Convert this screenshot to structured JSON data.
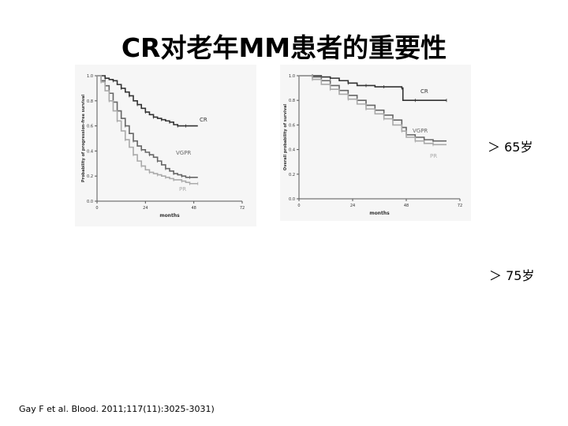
{
  "slide": {
    "title": "CR对老年MM患者的重要性",
    "age_labels": [
      "＞ 65岁",
      "＞ 75岁"
    ],
    "citation": "Gay F et al. Blood. 2011;117(11):3025-3031)"
  },
  "chart_data": [
    {
      "type": "line",
      "subtype": "kaplan-meier",
      "ylabel": "Probability of progression-free survival",
      "xlabel": "months",
      "xlim": [
        0,
        72
      ],
      "ylim": [
        0,
        1
      ],
      "xticks": [
        "0",
        "24",
        "48",
        "72"
      ],
      "yticks": [
        "0.0",
        "0.2",
        "0.4",
        "0.6",
        "0.8",
        "1.0"
      ],
      "colors": {
        "CR": "#333333",
        "VGPR": "#666666",
        "PR": "#aaaaaa"
      },
      "series": [
        {
          "name": "CR",
          "x": [
            0,
            4,
            6,
            8,
            10,
            12,
            14,
            16,
            18,
            20,
            22,
            24,
            26,
            28,
            30,
            32,
            34,
            36,
            38,
            40,
            42,
            44,
            50
          ],
          "y": [
            1,
            0.98,
            0.97,
            0.96,
            0.93,
            0.9,
            0.87,
            0.84,
            0.8,
            0.77,
            0.74,
            0.71,
            0.69,
            0.67,
            0.66,
            0.65,
            0.64,
            0.63,
            0.61,
            0.6,
            0.6,
            0.6,
            0.6
          ]
        },
        {
          "name": "VGPR",
          "x": [
            0,
            2,
            4,
            6,
            8,
            10,
            12,
            14,
            16,
            18,
            20,
            22,
            24,
            26,
            28,
            30,
            32,
            34,
            36,
            38,
            40,
            42,
            44,
            46,
            50
          ],
          "y": [
            1,
            0.96,
            0.92,
            0.86,
            0.79,
            0.72,
            0.66,
            0.6,
            0.54,
            0.48,
            0.44,
            0.41,
            0.39,
            0.37,
            0.35,
            0.32,
            0.29,
            0.26,
            0.24,
            0.22,
            0.21,
            0.2,
            0.19,
            0.19,
            0.19
          ]
        },
        {
          "name": "PR",
          "x": [
            0,
            2,
            4,
            6,
            8,
            10,
            12,
            14,
            16,
            18,
            20,
            22,
            24,
            26,
            28,
            30,
            32,
            34,
            36,
            38,
            40,
            42,
            44,
            46,
            48,
            50
          ],
          "y": [
            1,
            0.95,
            0.88,
            0.8,
            0.72,
            0.64,
            0.56,
            0.49,
            0.43,
            0.37,
            0.32,
            0.28,
            0.25,
            0.23,
            0.22,
            0.21,
            0.2,
            0.19,
            0.18,
            0.17,
            0.17,
            0.16,
            0.15,
            0.14,
            0.14,
            0.14
          ]
        }
      ]
    },
    {
      "type": "line",
      "subtype": "kaplan-meier",
      "ylabel": "Overall probability of survival",
      "xlabel": "months",
      "xlim": [
        0,
        72
      ],
      "ylim": [
        0,
        1
      ],
      "xticks": [
        "0",
        "24",
        "48",
        "72"
      ],
      "yticks": [
        "0.0",
        "0.2",
        "0.4",
        "0.6",
        "0.8",
        "1.0"
      ],
      "colors": {
        "CR": "#333333",
        "VGPR": "#666666",
        "PR": "#aaaaaa"
      },
      "series": [
        {
          "name": "CR",
          "x": [
            0,
            6,
            10,
            14,
            18,
            22,
            26,
            30,
            34,
            38,
            42,
            46,
            46.5,
            52,
            60,
            66
          ],
          "y": [
            1,
            1,
            0.99,
            0.98,
            0.96,
            0.94,
            0.92,
            0.92,
            0.91,
            0.91,
            0.91,
            0.9,
            0.8,
            0.8,
            0.8,
            0.8
          ]
        },
        {
          "name": "VGPR",
          "x": [
            0,
            6,
            10,
            14,
            18,
            22,
            26,
            30,
            34,
            38,
            42,
            46,
            48,
            52,
            56,
            60,
            66
          ],
          "y": [
            1,
            0.99,
            0.96,
            0.92,
            0.88,
            0.84,
            0.8,
            0.76,
            0.72,
            0.68,
            0.64,
            0.58,
            0.52,
            0.5,
            0.48,
            0.47,
            0.47
          ]
        },
        {
          "name": "PR",
          "x": [
            0,
            6,
            10,
            14,
            18,
            22,
            26,
            30,
            34,
            38,
            42,
            46,
            48,
            52,
            56,
            60,
            66
          ],
          "y": [
            1,
            0.97,
            0.93,
            0.89,
            0.85,
            0.81,
            0.77,
            0.73,
            0.69,
            0.65,
            0.6,
            0.55,
            0.5,
            0.47,
            0.45,
            0.44,
            0.44
          ]
        }
      ]
    }
  ]
}
